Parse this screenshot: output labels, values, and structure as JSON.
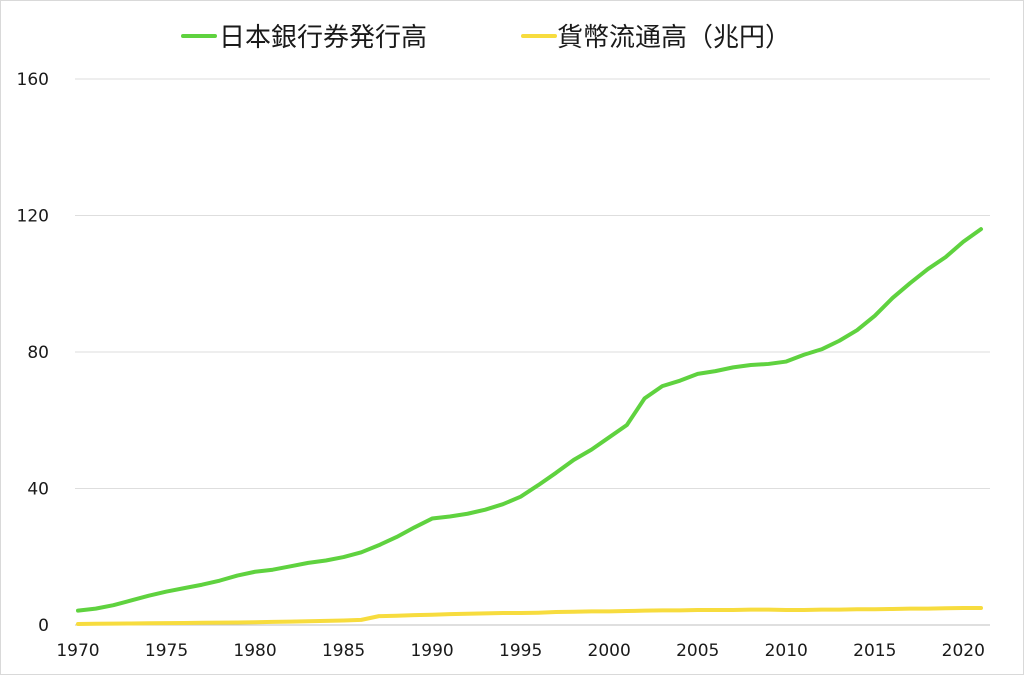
{
  "chart_data": {
    "type": "line",
    "title": "",
    "xlabel": "",
    "ylabel": "",
    "xlim": [
      1970,
      2021
    ],
    "ylim": [
      0,
      160
    ],
    "y_ticks": [
      0,
      40,
      80,
      120,
      160
    ],
    "x_ticks": [
      1970,
      1975,
      1980,
      1985,
      1990,
      1995,
      2000,
      2005,
      2010,
      2015,
      2020
    ],
    "grid": "horizontal",
    "legend_position": "top-center",
    "x": [
      1970,
      1971,
      1972,
      1973,
      1974,
      1975,
      1976,
      1977,
      1978,
      1979,
      1980,
      1981,
      1982,
      1983,
      1984,
      1985,
      1986,
      1987,
      1988,
      1989,
      1990,
      1991,
      1992,
      1993,
      1994,
      1995,
      1996,
      1997,
      1998,
      1999,
      2000,
      2001,
      2002,
      2003,
      2004,
      2005,
      2006,
      2007,
      2008,
      2009,
      2010,
      2011,
      2012,
      2013,
      2014,
      2015,
      2016,
      2017,
      2018,
      2019,
      2020,
      2021
    ],
    "series": [
      {
        "name": "日本銀行券発行高",
        "color": "#5fd23f",
        "values": [
          4.2,
          4.8,
          5.8,
          7.2,
          8.6,
          9.8,
          10.8,
          11.8,
          13.0,
          14.5,
          15.6,
          16.2,
          17.2,
          18.2,
          18.9,
          19.9,
          21.3,
          23.4,
          25.8,
          28.6,
          31.2,
          31.8,
          32.6,
          33.8,
          35.4,
          37.6,
          41.0,
          44.6,
          48.4,
          51.4,
          55.0,
          58.6,
          66.4,
          70.0,
          71.6,
          73.6,
          74.4,
          75.5,
          76.2,
          76.5,
          77.2,
          79.2,
          80.8,
          83.3,
          86.4,
          90.6,
          95.8,
          100.2,
          104.3,
          107.8,
          112.3,
          116.0
        ]
      },
      {
        "name": "貨幣流通高（兆円）",
        "color": "#f7dc3e",
        "values": [
          0.3,
          0.35,
          0.4,
          0.45,
          0.5,
          0.55,
          0.6,
          0.65,
          0.7,
          0.75,
          0.8,
          0.9,
          1.0,
          1.1,
          1.2,
          1.3,
          1.5,
          2.6,
          2.7,
          2.9,
          3.0,
          3.2,
          3.3,
          3.4,
          3.5,
          3.5,
          3.6,
          3.8,
          3.9,
          4.0,
          4.0,
          4.1,
          4.2,
          4.3,
          4.3,
          4.4,
          4.4,
          4.4,
          4.5,
          4.5,
          4.4,
          4.4,
          4.5,
          4.5,
          4.6,
          4.6,
          4.7,
          4.8,
          4.8,
          4.9,
          5.0,
          5.0
        ]
      }
    ]
  }
}
